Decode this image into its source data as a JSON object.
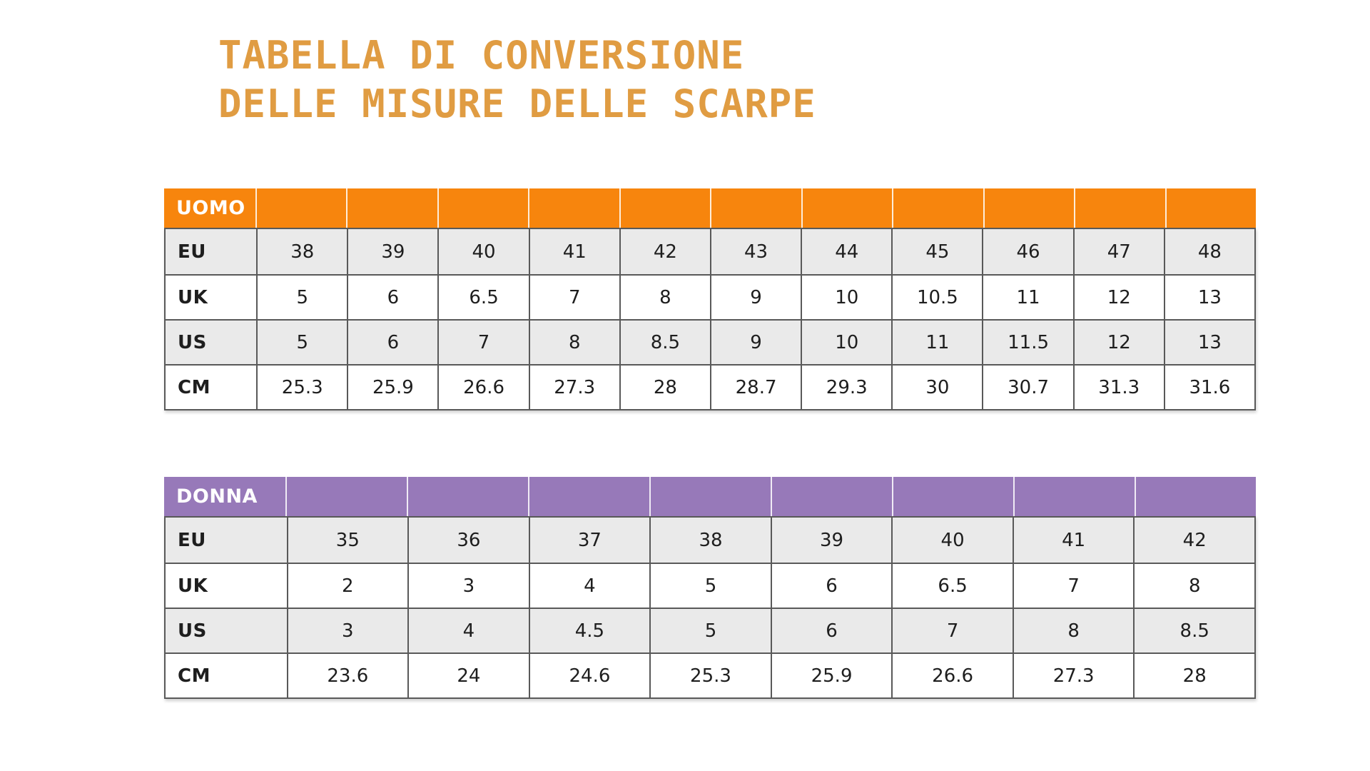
{
  "page": {
    "background_color": "#FFFFFF",
    "title": {
      "line1": "TABELLA DI CONVERSIONE",
      "line2": "DELLE MISURE DELLE SCARPE",
      "color": "#E09C42"
    }
  },
  "style_colors": {
    "men_header": "#F7850D",
    "women_header": "#9779B9",
    "alt_row_gray": "#EAEAEA",
    "grid_border": "#595959",
    "cell_text": "#1E1E1E",
    "header_text": "#FFFFFF"
  },
  "tables": [
    {
      "id": "uomo",
      "header_label": "UOMO",
      "header_color": "#F7850D",
      "rows": [
        {
          "label": "EU",
          "values": [
            "38",
            "39",
            "40",
            "41",
            "42",
            "43",
            "44",
            "45",
            "46",
            "47",
            "48"
          ]
        },
        {
          "label": "UK",
          "values": [
            "5",
            "6",
            "6.5",
            "7",
            "8",
            "9",
            "10",
            "10.5",
            "11",
            "12",
            "13"
          ]
        },
        {
          "label": "US",
          "values": [
            "5",
            "6",
            "7",
            "8",
            "8.5",
            "9",
            "10",
            "11",
            "11.5",
            "12",
            "13"
          ]
        },
        {
          "label": "CM",
          "values": [
            "25.3",
            "25.9",
            "26.6",
            "27.3",
            "28",
            "28.7",
            "29.3",
            "30",
            "30.7",
            "31.3",
            "31.6"
          ]
        }
      ]
    },
    {
      "id": "donna",
      "header_label": "DONNA",
      "header_color": "#9779B9",
      "rows": [
        {
          "label": "EU",
          "values": [
            "35",
            "36",
            "37",
            "38",
            "39",
            "40",
            "41",
            "42"
          ]
        },
        {
          "label": "UK",
          "values": [
            "2",
            "3",
            "4",
            "5",
            "6",
            "6.5",
            "7",
            "8"
          ]
        },
        {
          "label": "US",
          "values": [
            "3",
            "4",
            "4.5",
            "5",
            "6",
            "7",
            "8",
            "8.5"
          ]
        },
        {
          "label": "CM",
          "values": [
            "23.6",
            "24",
            "24.6",
            "25.3",
            "25.9",
            "26.6",
            "27.3",
            "28"
          ]
        }
      ]
    }
  ]
}
